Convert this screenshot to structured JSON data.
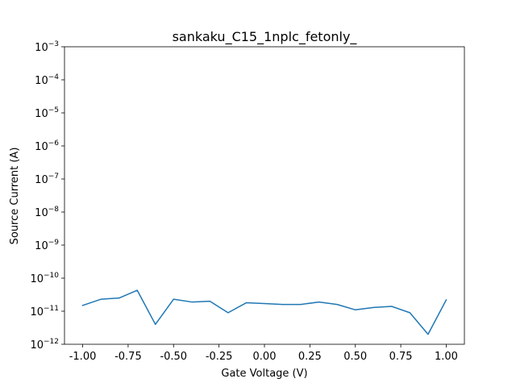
{
  "chart_data": {
    "type": "line",
    "title": "sankaku_C15_1nplc_fetonly_",
    "xlabel": "Gate Voltage (V)",
    "ylabel": "Source Current (A)",
    "xlim": [
      -1.1,
      1.1
    ],
    "ylim": [
      1e-12,
      0.001
    ],
    "yscale": "log",
    "grid": false,
    "x_ticks": [
      "-1.00",
      "-0.75",
      "-0.50",
      "-0.25",
      "0.00",
      "0.25",
      "0.50",
      "0.75",
      "1.00"
    ],
    "x_tick_values": [
      -1.0,
      -0.75,
      -0.5,
      -0.25,
      0.0,
      0.25,
      0.5,
      0.75,
      1.0
    ],
    "y_tick_exponents": [
      "-12",
      "-11",
      "-10",
      "-9",
      "-8",
      "-7",
      "-6",
      "-5",
      "-4",
      "-3"
    ],
    "line_color": "#1f77b4",
    "series": [
      {
        "x": [
          -1.0,
          -0.9,
          -0.8,
          -0.7,
          -0.6,
          -0.5,
          -0.4,
          -0.3,
          -0.2,
          -0.1,
          0.0,
          0.1,
          0.2,
          0.3,
          0.4,
          0.5,
          0.6,
          0.7,
          0.8,
          0.9,
          1.0
        ],
        "y": [
          1.5e-11,
          2.3e-11,
          2.5e-11,
          4.3e-11,
          4e-12,
          2.3e-11,
          1.9e-11,
          2e-11,
          9e-12,
          1.8e-11,
          1.7e-11,
          1.6e-11,
          1.6e-11,
          1.9e-11,
          1.6e-11,
          1.1e-11,
          1.3e-11,
          1.4e-11,
          9e-12,
          2e-12,
          2.2e-11
        ]
      }
    ]
  }
}
